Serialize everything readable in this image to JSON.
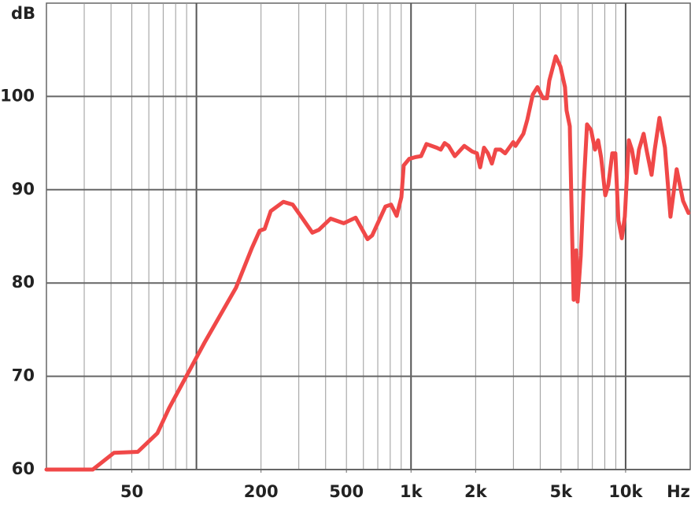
{
  "chart_data": {
    "type": "line",
    "x_label": "Hz",
    "y_label": "dB",
    "xlim": [
      20,
      20000
    ],
    "ylim": [
      60,
      110
    ],
    "log_x": true,
    "grid": true,
    "xticks": [
      50,
      200,
      500,
      {
        "value": 1000,
        "label": "1k"
      },
      {
        "value": 2000,
        "label": "2k"
      },
      {
        "value": 5000,
        "label": "5k"
      },
      {
        "value": 10000,
        "label": "10k"
      }
    ],
    "yticks": [
      60,
      70,
      80,
      90,
      100
    ],
    "series": [
      {
        "color": "#f04848",
        "x": [
          20,
          32.9,
          41.3,
          53.3,
          65.8,
          74.6,
          109,
          153,
          181,
          197,
          208,
          222,
          254,
          281,
          308,
          347,
          372,
          422,
          486,
          552,
          590,
          627,
          659,
          760,
          807,
          857,
          902,
          925,
          980,
          1050,
          1114,
          1180,
          1318,
          1376,
          1435,
          1496,
          1600,
          1770,
          1928,
          2029,
          2099,
          2189,
          2282,
          2382,
          2483,
          2612,
          2747,
          2993,
          3069,
          3337,
          3483,
          3693,
          3884,
          4122,
          4299,
          4410,
          4722,
          4967,
          5220,
          5306,
          5494,
          5634,
          5727,
          5877,
          5973,
          6178,
          6394,
          6610,
          6903,
          7198,
          7446,
          7698,
          8038,
          8306,
          8670,
          8960,
          9262,
          9600,
          9916,
          10350,
          10700,
          11170,
          11540,
          12130,
          12560,
          13210,
          13670,
          14380,
          15250,
          16180,
          17300,
          18520,
          19640
        ],
        "values": [
          60,
          60,
          61.8,
          61.9,
          63.9,
          66.6,
          73.6,
          79.5,
          83.7,
          85.6,
          85.8,
          87.7,
          88.7,
          88.4,
          87.1,
          85.4,
          85.7,
          86.9,
          86.4,
          87.0,
          85.8,
          84.7,
          85.1,
          88.2,
          88.4,
          87.2,
          89.2,
          92.6,
          93.3,
          93.5,
          93.6,
          94.9,
          94.5,
          94.3,
          95.0,
          94.7,
          93.6,
          94.7,
          94.1,
          93.9,
          92.4,
          94.5,
          93.9,
          92.8,
          94.3,
          94.3,
          93.9,
          95.1,
          94.7,
          96.0,
          97.5,
          100.2,
          101.0,
          99.8,
          99.8,
          101.7,
          104.3,
          103.2,
          101.0,
          98.5,
          96.8,
          85.0,
          78.2,
          83.5,
          78.0,
          82.9,
          90.9,
          97.0,
          96.4,
          94.3,
          95.3,
          93.4,
          89.4,
          90.5,
          93.9,
          93.9,
          86.7,
          84.8,
          87.1,
          95.3,
          94.3,
          91.8,
          94.3,
          96.0,
          94.1,
          91.6,
          94.3,
          97.7,
          94.5,
          87.1,
          92.2,
          88.8,
          87.5
        ]
      }
    ]
  }
}
